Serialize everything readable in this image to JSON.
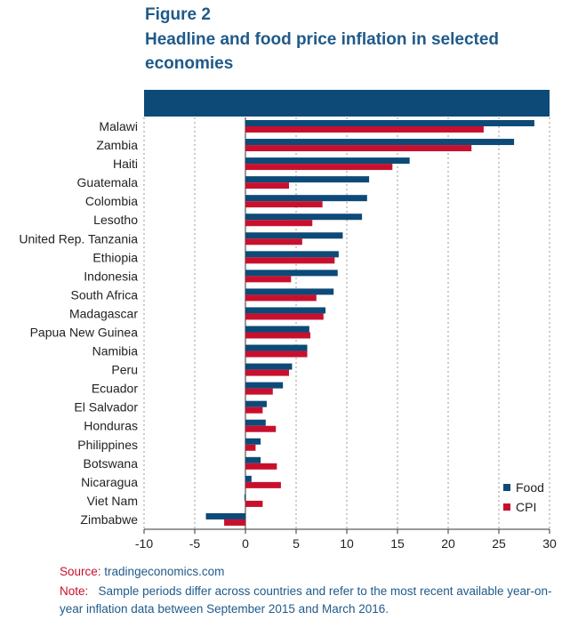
{
  "figure_label": "Figure 2",
  "figure_title": "Headline and food price inflation in selected economies",
  "source_label": "Source:",
  "source_text": "tradingeconomics.com",
  "note_label": "Note:",
  "note_text": "Sample periods differ across countries and refer to the most recent available year-on-year inflation data between September 2015 and March 2016.",
  "colors": {
    "food": "#0d4a78",
    "cpi": "#c8102e"
  },
  "chart_data": {
    "type": "bar",
    "orientation": "horizontal",
    "title": "Headline and food price inflation in selected economies",
    "xlim": [
      -10,
      30
    ],
    "xticks": [
      -10,
      -5,
      0,
      5,
      10,
      15,
      20,
      25,
      30
    ],
    "grid": "vertical dotted",
    "legend_position": "bottom-right",
    "categories": [
      "Malawi",
      "Zambia",
      "Haiti",
      "Guatemala",
      "Colombia",
      "Lesotho",
      "United Rep. Tanzania",
      "Ethiopia",
      "Indonesia",
      "South Africa",
      "Madagascar",
      "Papua New Guinea",
      "Namibia",
      "Peru",
      "Ecuador",
      "El Salvador",
      "Honduras",
      "Philippines",
      "Botswana",
      "Nicaragua",
      "Viet Nam",
      "Zimbabwe"
    ],
    "series": [
      {
        "name": "Food",
        "values": [
          28.5,
          26.5,
          16.2,
          12.2,
          12.0,
          11.5,
          9.6,
          9.2,
          9.1,
          8.7,
          7.9,
          6.3,
          6.1,
          4.6,
          3.7,
          2.1,
          2.0,
          1.5,
          1.5,
          0.6,
          -0.1,
          -3.9
        ]
      },
      {
        "name": "CPI",
        "values": [
          23.5,
          22.3,
          14.5,
          4.3,
          7.6,
          6.6,
          5.6,
          8.8,
          4.5,
          7.0,
          7.7,
          6.4,
          6.1,
          4.3,
          2.7,
          1.7,
          3.0,
          1.0,
          3.1,
          3.5,
          1.7,
          -2.1
        ]
      }
    ]
  }
}
